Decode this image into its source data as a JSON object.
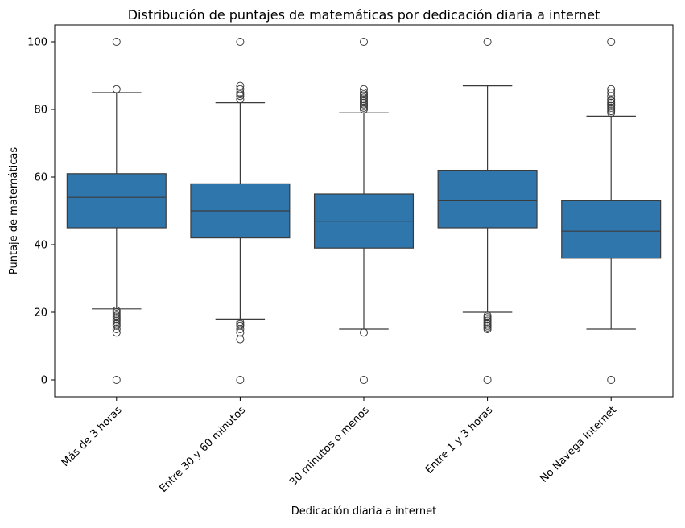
{
  "chart_data": {
    "type": "box",
    "title": "Distribución de puntajes de matemáticas por dedicación diaria a internet",
    "xlabel": "Dedicación diaria a internet",
    "ylabel": "Puntaje de matemáticas",
    "ylim": [
      -5,
      105
    ],
    "yticks": [
      0,
      20,
      40,
      60,
      80,
      100
    ],
    "grid": false,
    "color": "#2f76ac",
    "line_color": "#3b3b3b",
    "categories": [
      "Más de 3 horas",
      "Entre 30 y 60 minutos",
      "30 minutos o menos",
      "Entre 1 y 3 horas",
      "No Navega Internet"
    ],
    "boxes": [
      {
        "category": "Más de 3 horas",
        "whisker_low": 21,
        "q1": 45,
        "median": 54,
        "q3": 61,
        "whisker_high": 85,
        "outliers": [
          0,
          14,
          15,
          16,
          16.5,
          17,
          17.5,
          18,
          18.5,
          19,
          19.5,
          20,
          20.5,
          86,
          100
        ]
      },
      {
        "category": "Entre 30 y 60 minutos",
        "whisker_low": 18,
        "q1": 42,
        "median": 50,
        "q3": 58,
        "whisker_high": 82,
        "outliers": [
          0,
          12,
          14,
          15,
          16,
          16.5,
          17,
          83,
          84,
          84.5,
          85,
          86,
          87,
          100
        ]
      },
      {
        "category": "30 minutos o menos",
        "whisker_low": 15,
        "q1": 39,
        "median": 47,
        "q3": 55,
        "whisker_high": 79,
        "outliers": [
          0,
          14,
          80,
          80.5,
          81,
          81.5,
          82,
          82.5,
          83,
          83.5,
          84,
          84.5,
          85,
          86,
          100
        ]
      },
      {
        "category": "Entre 1 y 3 horas",
        "whisker_low": 20,
        "q1": 45,
        "median": 53,
        "q3": 62,
        "whisker_high": 87,
        "outliers": [
          0,
          15,
          15.5,
          16,
          16.5,
          17,
          17.5,
          18,
          18.5,
          19,
          100
        ]
      },
      {
        "category": "No Navega Internet",
        "whisker_low": 15,
        "q1": 36,
        "median": 44,
        "q3": 53,
        "whisker_high": 78,
        "outliers": [
          0,
          79,
          79.5,
          80,
          80.5,
          81,
          81.5,
          82,
          82.5,
          83,
          84,
          85,
          86,
          100
        ]
      }
    ]
  }
}
